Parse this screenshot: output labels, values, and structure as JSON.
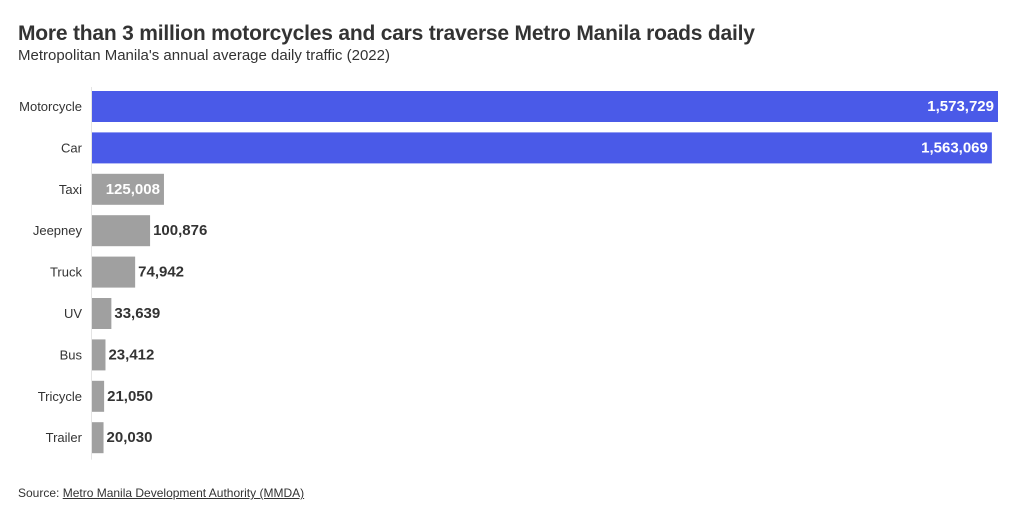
{
  "title": "More than 3 million motorcycles and cars traverse Metro Manila roads daily",
  "subtitle": "Metropolitan Manila's annual average daily traffic (2022)",
  "source": {
    "prefix": "Source: ",
    "link_text": "Metro Manila Development Authority (MMDA)"
  },
  "colors": {
    "highlight": "#4a5ae8",
    "other": "#a0a0a0"
  },
  "chart_data": {
    "type": "bar",
    "orientation": "horizontal",
    "title": "More than 3 million motorcycles and cars traverse Metro Manila roads daily",
    "subtitle": "Metropolitan Manila's annual average daily traffic (2022)",
    "categories": [
      "Motorcycle",
      "Car",
      "Taxi",
      "Jeepney",
      "Truck",
      "UV",
      "Bus",
      "Tricycle",
      "Trailer"
    ],
    "values": [
      1573729,
      1563069,
      125008,
      100876,
      74942,
      33639,
      23412,
      21050,
      20030
    ],
    "value_labels": [
      "1,573,729",
      "1,563,069",
      "125,008",
      "100,876",
      "74,942",
      "33,639",
      "23,412",
      "21,050",
      "20,030"
    ],
    "highlighted": [
      true,
      true,
      false,
      false,
      false,
      false,
      false,
      false,
      false
    ],
    "xlim": [
      0,
      1573729
    ],
    "grid": false,
    "legend": "none"
  }
}
